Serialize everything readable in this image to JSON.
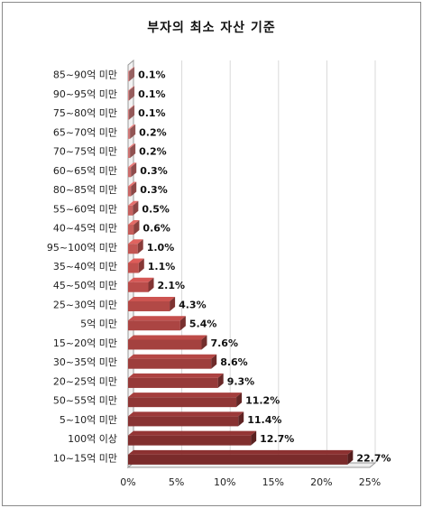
{
  "chart_data": {
    "type": "bar",
    "orientation": "horizontal",
    "title": "부자의 최소 자산 기준",
    "xlabel": "",
    "ylabel": "",
    "xlim": [
      0,
      25
    ],
    "xticks": [
      0,
      5,
      10,
      15,
      20,
      25
    ],
    "tick_suffix": "%",
    "grid": true,
    "legend": "none",
    "categories": [
      "85~90억 미만",
      "90~95억 미만",
      "75~80억 미만",
      "65~70억 미만",
      "70~75억 미만",
      "60~65억 미만",
      "80~85억 미만",
      "55~60억 미만",
      "40~45억 미만",
      "95~100억 미만",
      "35~40억 미만",
      "45~50억 미만",
      "25~30억 미만",
      "5억 미만",
      "15~20억 미만",
      "30~35억 미만",
      "20~25억 미만",
      "50~55억 미만",
      "5~10억 미만",
      "100억 이상",
      "10~15억 미만"
    ],
    "values": [
      0.1,
      0.1,
      0.1,
      0.2,
      0.2,
      0.3,
      0.3,
      0.5,
      0.6,
      1.0,
      1.1,
      2.1,
      4.3,
      5.4,
      7.6,
      8.6,
      9.3,
      11.2,
      11.4,
      12.7,
      22.7
    ],
    "value_labels": [
      "0.1%",
      "0.1%",
      "0.1%",
      "0.2%",
      "0.2%",
      "0.3%",
      "0.3%",
      "0.5%",
      "0.6%",
      "1.0%",
      "1.1%",
      "2.1%",
      "4.3%",
      "5.4%",
      "7.6%",
      "8.6%",
      "9.3%",
      "11.2%",
      "11.4%",
      "12.7%",
      "22.7%"
    ],
    "colors": {
      "light": "#d88a8a",
      "mid": "#c0504d",
      "dark": "#7a2b2b",
      "grid": "#d9d9d9",
      "axis": "#999999"
    }
  }
}
